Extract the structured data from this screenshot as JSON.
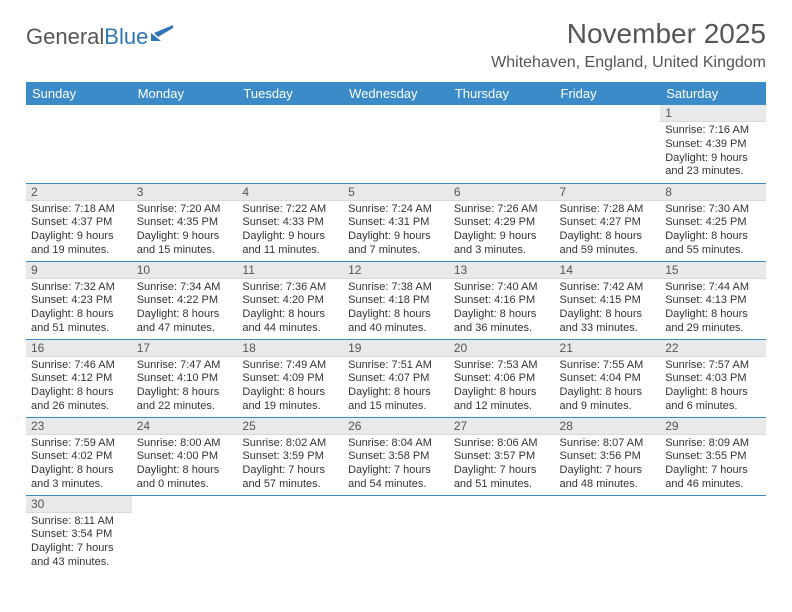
{
  "brand": {
    "part1": "General",
    "part2": "Blue"
  },
  "title": "November 2025",
  "location": "Whitehaven, England, United Kingdom",
  "calendar": {
    "header_bg": "#3b8bc9",
    "header_fg": "#ffffff",
    "daynum_bg": "#e9e9e9",
    "row_border": "#3b8bc9",
    "days": [
      "Sunday",
      "Monday",
      "Tuesday",
      "Wednesday",
      "Thursday",
      "Friday",
      "Saturday"
    ],
    "body_fontsize": 11,
    "weeks": [
      [
        null,
        null,
        null,
        null,
        null,
        null,
        {
          "n": "1",
          "sr": "7:16 AM",
          "ss": "4:39 PM",
          "dl": "9 hours and 23 minutes."
        }
      ],
      [
        {
          "n": "2",
          "sr": "7:18 AM",
          "ss": "4:37 PM",
          "dl": "9 hours and 19 minutes."
        },
        {
          "n": "3",
          "sr": "7:20 AM",
          "ss": "4:35 PM",
          "dl": "9 hours and 15 minutes."
        },
        {
          "n": "4",
          "sr": "7:22 AM",
          "ss": "4:33 PM",
          "dl": "9 hours and 11 minutes."
        },
        {
          "n": "5",
          "sr": "7:24 AM",
          "ss": "4:31 PM",
          "dl": "9 hours and 7 minutes."
        },
        {
          "n": "6",
          "sr": "7:26 AM",
          "ss": "4:29 PM",
          "dl": "9 hours and 3 minutes."
        },
        {
          "n": "7",
          "sr": "7:28 AM",
          "ss": "4:27 PM",
          "dl": "8 hours and 59 minutes."
        },
        {
          "n": "8",
          "sr": "7:30 AM",
          "ss": "4:25 PM",
          "dl": "8 hours and 55 minutes."
        }
      ],
      [
        {
          "n": "9",
          "sr": "7:32 AM",
          "ss": "4:23 PM",
          "dl": "8 hours and 51 minutes."
        },
        {
          "n": "10",
          "sr": "7:34 AM",
          "ss": "4:22 PM",
          "dl": "8 hours and 47 minutes."
        },
        {
          "n": "11",
          "sr": "7:36 AM",
          "ss": "4:20 PM",
          "dl": "8 hours and 44 minutes."
        },
        {
          "n": "12",
          "sr": "7:38 AM",
          "ss": "4:18 PM",
          "dl": "8 hours and 40 minutes."
        },
        {
          "n": "13",
          "sr": "7:40 AM",
          "ss": "4:16 PM",
          "dl": "8 hours and 36 minutes."
        },
        {
          "n": "14",
          "sr": "7:42 AM",
          "ss": "4:15 PM",
          "dl": "8 hours and 33 minutes."
        },
        {
          "n": "15",
          "sr": "7:44 AM",
          "ss": "4:13 PM",
          "dl": "8 hours and 29 minutes."
        }
      ],
      [
        {
          "n": "16",
          "sr": "7:46 AM",
          "ss": "4:12 PM",
          "dl": "8 hours and 26 minutes."
        },
        {
          "n": "17",
          "sr": "7:47 AM",
          "ss": "4:10 PM",
          "dl": "8 hours and 22 minutes."
        },
        {
          "n": "18",
          "sr": "7:49 AM",
          "ss": "4:09 PM",
          "dl": "8 hours and 19 minutes."
        },
        {
          "n": "19",
          "sr": "7:51 AM",
          "ss": "4:07 PM",
          "dl": "8 hours and 15 minutes."
        },
        {
          "n": "20",
          "sr": "7:53 AM",
          "ss": "4:06 PM",
          "dl": "8 hours and 12 minutes."
        },
        {
          "n": "21",
          "sr": "7:55 AM",
          "ss": "4:04 PM",
          "dl": "8 hours and 9 minutes."
        },
        {
          "n": "22",
          "sr": "7:57 AM",
          "ss": "4:03 PM",
          "dl": "8 hours and 6 minutes."
        }
      ],
      [
        {
          "n": "23",
          "sr": "7:59 AM",
          "ss": "4:02 PM",
          "dl": "8 hours and 3 minutes."
        },
        {
          "n": "24",
          "sr": "8:00 AM",
          "ss": "4:00 PM",
          "dl": "8 hours and 0 minutes."
        },
        {
          "n": "25",
          "sr": "8:02 AM",
          "ss": "3:59 PM",
          "dl": "7 hours and 57 minutes."
        },
        {
          "n": "26",
          "sr": "8:04 AM",
          "ss": "3:58 PM",
          "dl": "7 hours and 54 minutes."
        },
        {
          "n": "27",
          "sr": "8:06 AM",
          "ss": "3:57 PM",
          "dl": "7 hours and 51 minutes."
        },
        {
          "n": "28",
          "sr": "8:07 AM",
          "ss": "3:56 PM",
          "dl": "7 hours and 48 minutes."
        },
        {
          "n": "29",
          "sr": "8:09 AM",
          "ss": "3:55 PM",
          "dl": "7 hours and 46 minutes."
        }
      ],
      [
        {
          "n": "30",
          "sr": "8:11 AM",
          "ss": "3:54 PM",
          "dl": "7 hours and 43 minutes."
        },
        null,
        null,
        null,
        null,
        null,
        null
      ]
    ]
  },
  "labels": {
    "sunrise": "Sunrise:",
    "sunset": "Sunset:",
    "daylight": "Daylight:"
  }
}
